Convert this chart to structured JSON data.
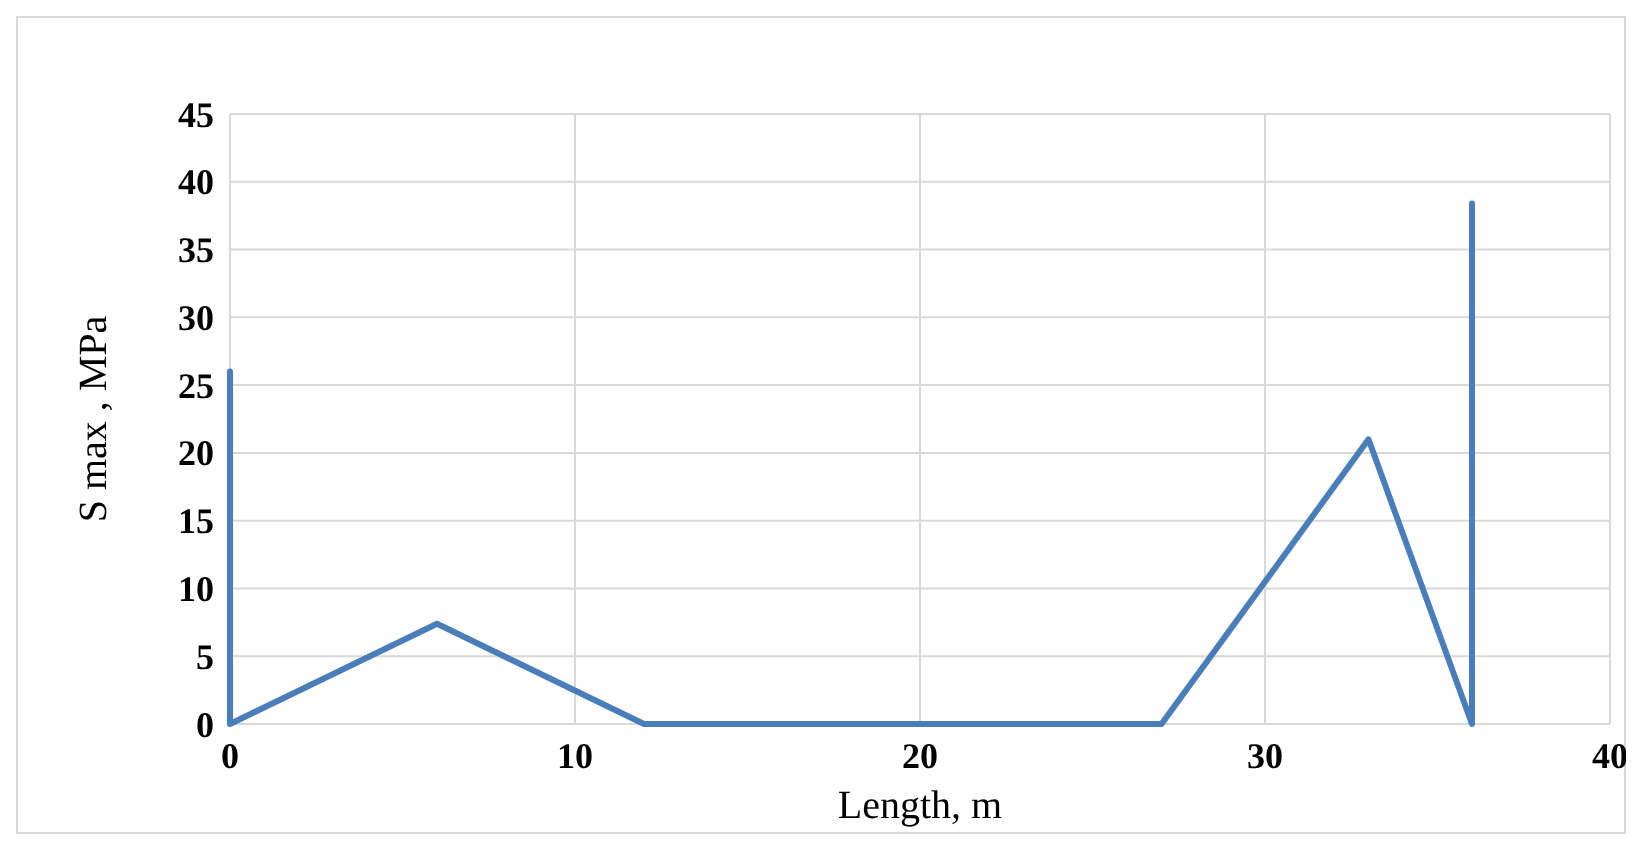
{
  "chart_data": {
    "type": "line",
    "xlabel": "Length, m",
    "ylabel": "S max , MPa",
    "series": [
      {
        "color": "#4a7ebb",
        "x": [
          0,
          0,
          6,
          12,
          27,
          33,
          36,
          36
        ],
        "values": [
          26,
          0,
          7.4,
          0,
          0,
          21,
          0,
          38.4
        ]
      }
    ],
    "xlim": [
      0,
      40
    ],
    "xticks": [
      0,
      10,
      20,
      30,
      40
    ],
    "ylim": [
      0,
      45
    ],
    "yticks": [
      0,
      5,
      10,
      15,
      20,
      25,
      30,
      35,
      40,
      45
    ],
    "grid": true,
    "marker": "none",
    "line_style": "solid"
  }
}
